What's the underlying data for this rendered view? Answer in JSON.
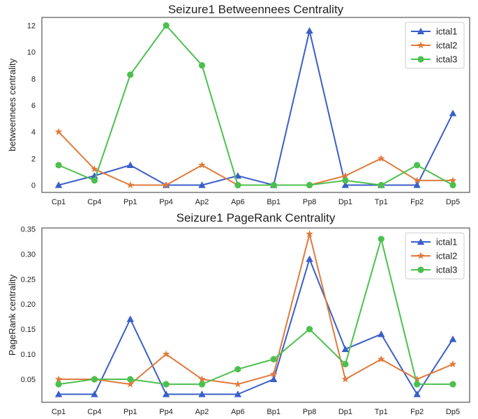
{
  "chart_data": [
    {
      "type": "line",
      "title": "Seizure1 Betweennees Centrality",
      "xlabel": "",
      "ylabel": "betweennees centrality",
      "categories": [
        "Cp1",
        "Cp4",
        "Pp1",
        "Pp4",
        "Ap2",
        "Ap6",
        "Bp1",
        "Pp8",
        "Dp1",
        "Tp1",
        "Fp2",
        "Dp5"
      ],
      "ylim": [
        -0.55,
        12.6
      ],
      "yticks": [
        0,
        2,
        4,
        6,
        8,
        10,
        12
      ],
      "legend": "top-right",
      "grid": false,
      "series": [
        {
          "name": "ictal1",
          "color": "#3a5fc8",
          "marker": "triangle",
          "values": [
            0,
            0.7,
            1.5,
            0,
            0,
            0.7,
            0,
            11.6,
            0,
            0,
            0,
            5.4
          ]
        },
        {
          "name": "ictal2",
          "color": "#e07a3c",
          "marker": "star",
          "values": [
            4.0,
            1.2,
            0,
            0,
            1.5,
            0,
            0,
            0,
            0.7,
            2.0,
            0.35,
            0.35
          ]
        },
        {
          "name": "ictal3",
          "color": "#4cc04e",
          "marker": "circle",
          "values": [
            1.5,
            0.35,
            8.3,
            12.0,
            9.0,
            0,
            0,
            0,
            0.35,
            0,
            1.5,
            0
          ]
        }
      ]
    },
    {
      "type": "line",
      "title": "Seizure1 PageRank Centrality",
      "xlabel": "",
      "ylabel": "PageRank centrality",
      "categories": [
        "Cp1",
        "Cp4",
        "Pp1",
        "Pp4",
        "Ap2",
        "Ap6",
        "Bp1",
        "Pp8",
        "Dp1",
        "Tp1",
        "Fp2",
        "Dp5"
      ],
      "ylim": [
        0.004,
        0.352
      ],
      "yticks": [
        0.05,
        0.1,
        0.15,
        0.2,
        0.25,
        0.3,
        0.35
      ],
      "ytick_labels": [
        "0.05",
        "0.10",
        "0.15",
        "0.20",
        "0.25",
        "0.30",
        "0.35"
      ],
      "legend": "top-right",
      "grid": false,
      "series": [
        {
          "name": "ictal1",
          "color": "#3a5fc8",
          "marker": "triangle",
          "values": [
            0.02,
            0.02,
            0.17,
            0.02,
            0.02,
            0.02,
            0.05,
            0.29,
            0.11,
            0.14,
            0.02,
            0.13
          ]
        },
        {
          "name": "ictal2",
          "color": "#e07a3c",
          "marker": "star",
          "values": [
            0.05,
            0.05,
            0.04,
            0.1,
            0.05,
            0.04,
            0.06,
            0.34,
            0.05,
            0.09,
            0.05,
            0.08
          ]
        },
        {
          "name": "ictal3",
          "color": "#4cc04e",
          "marker": "circle",
          "values": [
            0.04,
            0.05,
            0.05,
            0.04,
            0.04,
            0.07,
            0.09,
            0.15,
            0.08,
            0.33,
            0.04,
            0.04
          ]
        }
      ]
    }
  ]
}
